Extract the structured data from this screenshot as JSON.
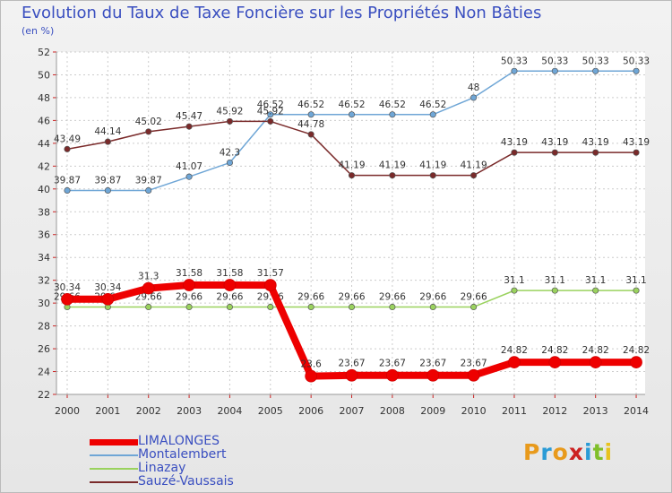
{
  "title": "Evolution du Taux de Taxe Foncière sur les Propriétés Non Bâties",
  "unit_label": "(en %)",
  "logo": {
    "text": "Proxiti",
    "colors": [
      "#e89a1c",
      "#2a9bd6",
      "#e89a1c",
      "#cc2222",
      "#2a9bd6",
      "#7fbf2a",
      "#e8c21c"
    ]
  },
  "chart_data": {
    "type": "line",
    "title": "Evolution du Taux de Taxe Foncière sur les Propriétés Non Bâties",
    "ylabel": "(en %)",
    "xlabel": "",
    "x": [
      "2000",
      "2001",
      "2002",
      "2003",
      "2004",
      "2005",
      "2006",
      "2007",
      "2008",
      "2009",
      "2010",
      "2011",
      "2012",
      "2013",
      "2014"
    ],
    "ylim": [
      22,
      52
    ],
    "yticks": [
      "22",
      "24",
      "26",
      "28",
      "30",
      "32",
      "34",
      "36",
      "38",
      "40",
      "42",
      "44",
      "46",
      "48",
      "50",
      "52"
    ],
    "grid": true,
    "series": [
      {
        "name": "LIMALONGES",
        "color": "#ee0000",
        "values": [
          30.34,
          30.34,
          31.3,
          31.58,
          31.58,
          31.57,
          23.6,
          23.67,
          23.67,
          23.67,
          23.67,
          24.82,
          24.82,
          24.82,
          24.82
        ],
        "labels": [
          "30.34",
          "30.34",
          "31.3",
          "31.58",
          "31.58",
          "31.57",
          "23.6",
          "23.67",
          "23.67",
          "23.67",
          "23.67",
          "24.82",
          "24.82",
          "24.82",
          "24.82"
        ]
      },
      {
        "name": "Montalembert",
        "color": "#6fa6d6",
        "values": [
          39.87,
          39.87,
          39.87,
          41.07,
          42.3,
          46.52,
          46.52,
          46.52,
          46.52,
          46.52,
          48,
          50.33,
          50.33,
          50.33,
          50.33
        ],
        "labels": [
          "39.87",
          "39.87",
          "39.87",
          "41.07",
          "42.3",
          "46.52",
          "46.52",
          "46.52",
          "46.52",
          "46.52",
          "48",
          "50.33",
          "50.33",
          "50.33",
          "50.33"
        ]
      },
      {
        "name": "Linazay",
        "color": "#9ad25e",
        "values": [
          29.66,
          29.66,
          29.66,
          29.66,
          29.66,
          29.66,
          29.66,
          29.66,
          29.66,
          29.66,
          29.66,
          31.1,
          31.1,
          31.1,
          31.1
        ],
        "labels": [
          "29.66",
          "29.66",
          "29.66",
          "29.66",
          "29.66",
          "29.66",
          "29.66",
          "29.66",
          "29.66",
          "29.66",
          "29.66",
          "31.1",
          "31.1",
          "31.1",
          "31.1"
        ]
      },
      {
        "name": "Sauzé-Vaussais",
        "color": "#7a2a2a",
        "values": [
          43.49,
          44.14,
          45.02,
          45.47,
          45.92,
          45.92,
          44.78,
          41.19,
          41.19,
          41.19,
          41.19,
          43.19,
          43.19,
          43.19,
          43.19
        ],
        "labels": [
          "43.49",
          "44.14",
          "45.02",
          "45.47",
          "45.92",
          "45.92",
          "44.78",
          "41.19",
          "41.19",
          "41.19",
          "41.19",
          "43.19",
          "43.19",
          "43.19",
          "43.19"
        ]
      }
    ]
  }
}
